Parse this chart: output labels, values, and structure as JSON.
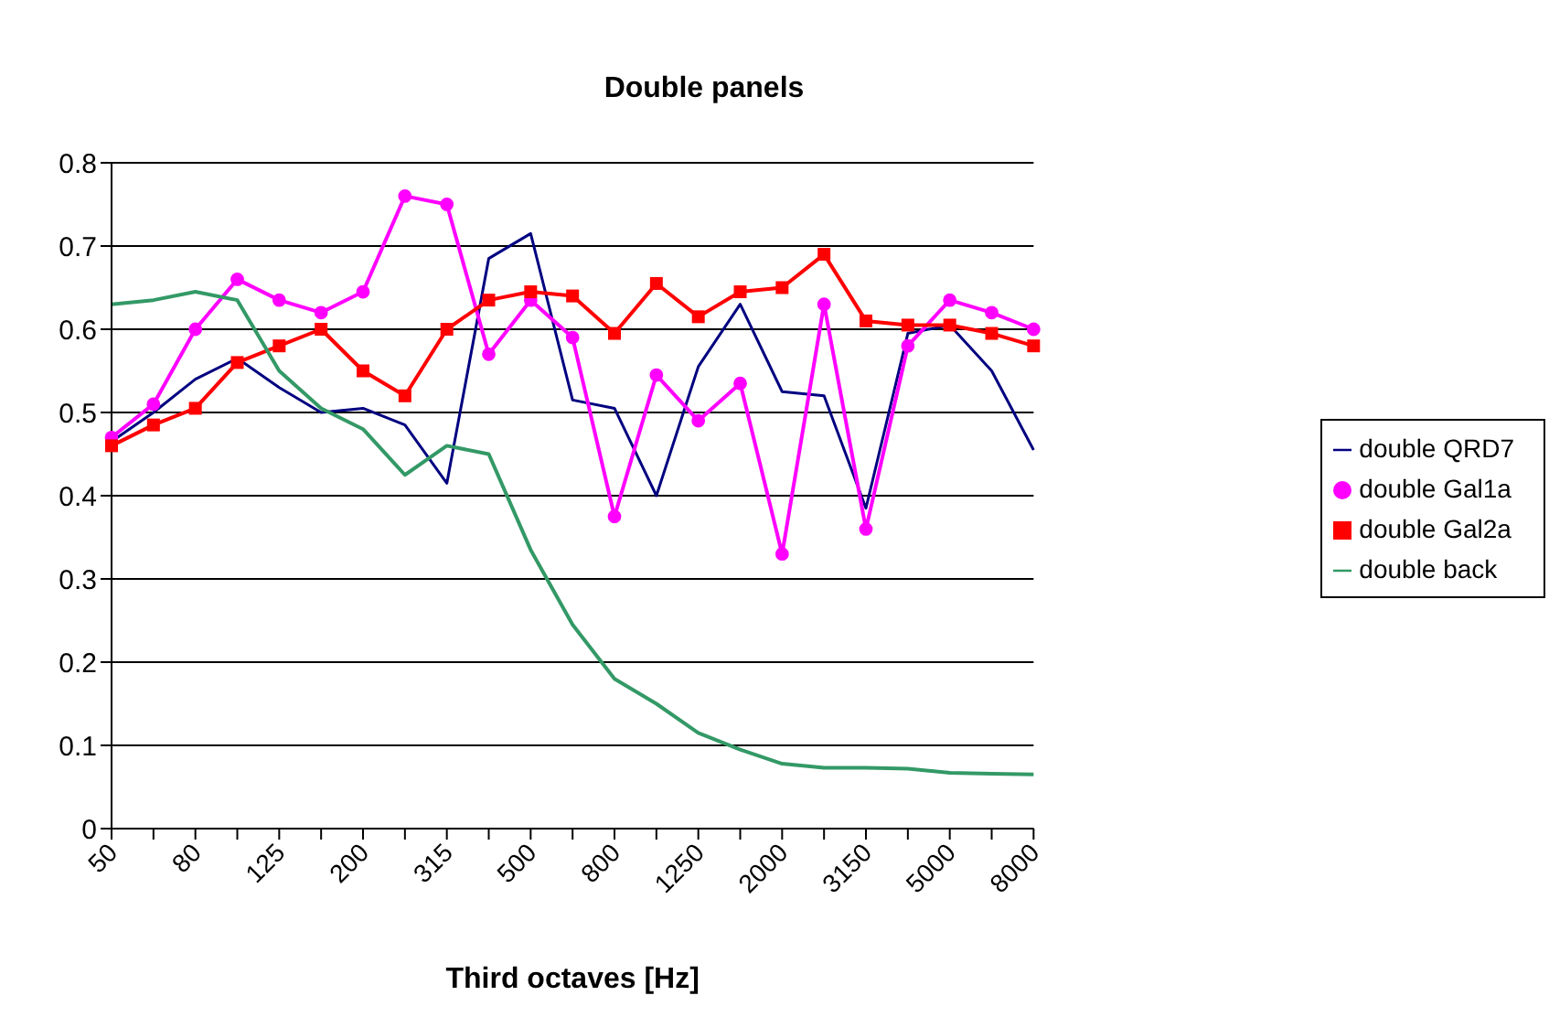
{
  "chart_data": {
    "type": "line",
    "title": "Double panels",
    "xlabel": "Third octaves [Hz]",
    "categories": [
      "50",
      null,
      "80",
      null,
      "125",
      null,
      "200",
      null,
      "315",
      null,
      "500",
      null,
      "800",
      null,
      "1250",
      null,
      "2000",
      null,
      "3150",
      null,
      "5000",
      null,
      "8000"
    ],
    "series": [
      {
        "name": "double QRD7",
        "color": "#000080",
        "marker": "none",
        "values": [
          0.465,
          0.5,
          0.54,
          0.565,
          0.53,
          0.5,
          0.505,
          0.485,
          0.415,
          0.685,
          0.715,
          0.515,
          0.505,
          0.4,
          0.555,
          0.63,
          0.525,
          0.52,
          0.385,
          0.595,
          0.605,
          0.55,
          0.455
        ]
      },
      {
        "name": "double Gal1a",
        "color": "#ff00ff",
        "marker": "circle",
        "values": [
          0.47,
          0.51,
          0.6,
          0.66,
          0.635,
          0.62,
          0.645,
          0.76,
          0.75,
          0.57,
          0.635,
          0.59,
          0.375,
          0.545,
          0.49,
          0.535,
          0.33,
          0.63,
          0.36,
          0.58,
          0.635,
          0.62,
          0.6
        ]
      },
      {
        "name": "double Gal2a",
        "color": "#ff0000",
        "marker": "square",
        "values": [
          0.46,
          0.485,
          0.505,
          0.56,
          0.58,
          0.6,
          0.55,
          0.52,
          0.6,
          0.635,
          0.645,
          0.64,
          0.595,
          0.655,
          0.615,
          0.645,
          0.65,
          0.69,
          0.61,
          0.605,
          0.605,
          0.595,
          0.58
        ]
      },
      {
        "name": "double back",
        "color": "#339966",
        "marker": "none",
        "values": [
          0.63,
          0.635,
          0.645,
          0.635,
          0.55,
          0.505,
          0.48,
          0.425,
          0.46,
          0.45,
          0.335,
          0.245,
          0.18,
          0.15,
          0.115,
          0.095,
          0.078,
          0.073,
          0.073,
          0.072,
          0.067,
          0.066,
          0.065
        ]
      }
    ],
    "ylim": [
      0,
      0.8
    ],
    "yticks": [
      0,
      0.1,
      0.2,
      0.3,
      0.4,
      0.5,
      0.6,
      0.7,
      0.8
    ],
    "grid": "y",
    "legend": "right",
    "line_style": "solid"
  }
}
